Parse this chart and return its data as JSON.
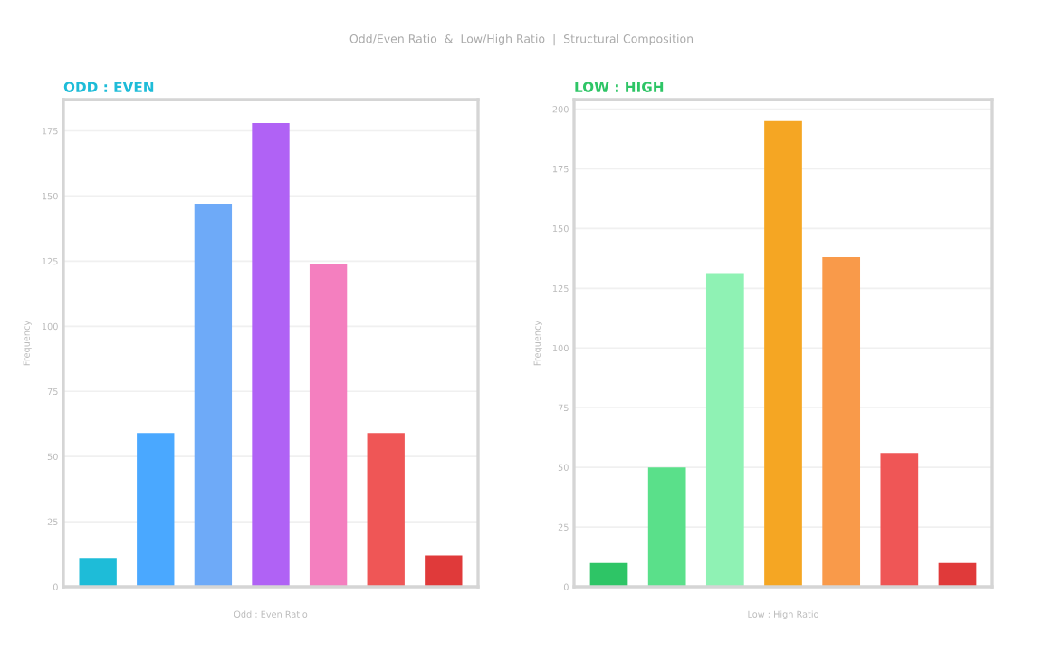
{
  "chart_data": [
    {
      "type": "bar",
      "title": "ODD : EVEN",
      "xlabel": "Odd : Even Ratio",
      "ylabel": "Frequency",
      "annotations": [
        "Odd/Even Ratio  &  Low/High Ratio  |  Structural Composition"
      ],
      "categories": [
        null,
        null,
        null,
        null,
        null,
        null,
        null
      ],
      "values": [
        11,
        59,
        147,
        178,
        124,
        59,
        12
      ],
      "colors": [
        "#1ebcd8",
        "#4aa8ff",
        "#6eaaf8",
        "#b062f5",
        "#f47fbf",
        "#ef5656",
        "#e03a3a"
      ],
      "ylim": [
        0,
        187
      ],
      "yticks": [
        0,
        25,
        50,
        75,
        100,
        125,
        150,
        175
      ],
      "grid": "y"
    },
    {
      "type": "bar",
      "title": "LOW : HIGH",
      "xlabel": "Low : High Ratio",
      "ylabel": "Frequency",
      "categories": [
        null,
        null,
        null,
        null,
        null,
        null,
        null
      ],
      "values": [
        10,
        50,
        131,
        195,
        138,
        56,
        10
      ],
      "colors": [
        "#2ec566",
        "#5ae08a",
        "#8ff2b4",
        "#f5a623",
        "#f99a4a",
        "#ef5656",
        "#e03a3a"
      ],
      "ylim": [
        0,
        204
      ],
      "yticks": [
        0,
        25,
        50,
        75,
        100,
        125,
        150,
        175,
        200
      ],
      "grid": "y"
    }
  ]
}
